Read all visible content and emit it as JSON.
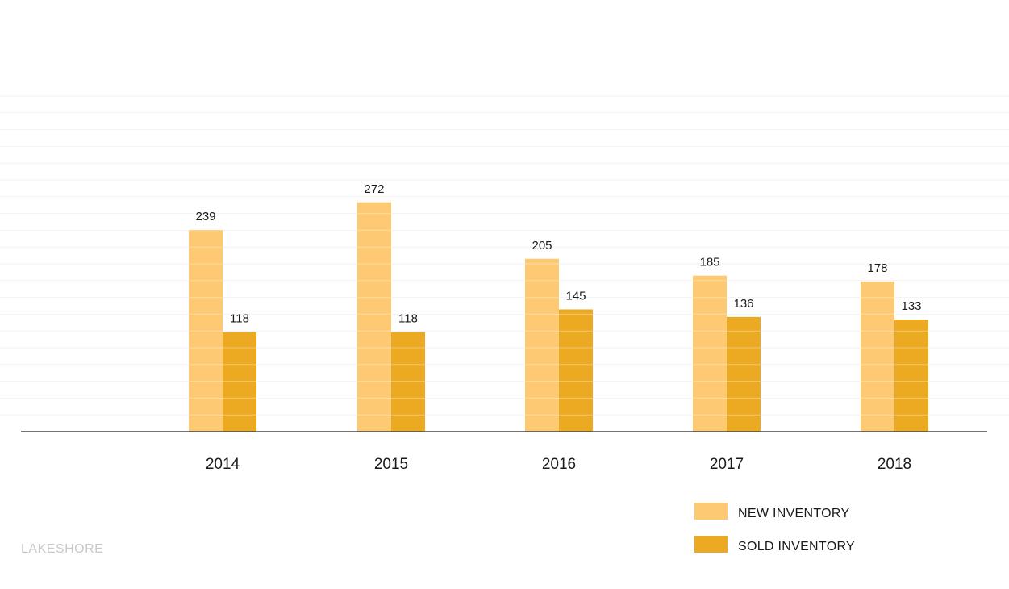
{
  "chart_data": {
    "type": "bar",
    "categories": [
      "2014",
      "2015",
      "2016",
      "2017",
      "2018"
    ],
    "series": [
      {
        "name": "NEW INVENTORY",
        "values": [
          239,
          272,
          205,
          185,
          178
        ],
        "color": "#FDCA73"
      },
      {
        "name": "SOLD INVENTORY",
        "values": [
          118,
          118,
          145,
          136,
          133
        ],
        "color": "#EBAA22"
      }
    ],
    "ylim": [
      0,
      400
    ],
    "grid": true,
    "legend": "bottom-right",
    "data_labels": true
  },
  "branding": {
    "text": "LAKESHORE"
  },
  "colors": {
    "axis": "#444444",
    "grid": "#f2f2f2",
    "stripe": "#ffffff"
  }
}
